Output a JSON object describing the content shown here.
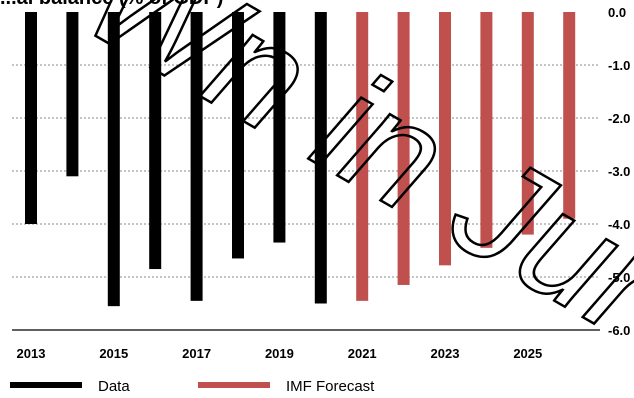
{
  "chart_data": {
    "type": "bar",
    "title": "...al balance (% of GDP)",
    "x": [
      2013,
      2014,
      2015,
      2016,
      2017,
      2018,
      2019,
      2020,
      2021,
      2022,
      2023,
      2024,
      2025,
      2026
    ],
    "x_tick_labels": [
      "2013",
      "2015",
      "2017",
      "2019",
      "2021",
      "2023",
      "2025"
    ],
    "y_tick_labels": [
      "0.0",
      "-1.0",
      "-2.0",
      "-3.0",
      "-4.0",
      "-5.0",
      "-6.0"
    ],
    "ylim": [
      -6,
      0
    ],
    "y_axis_side": "right",
    "grid": "horizontal dashed",
    "legend_position": "bottom-left",
    "series": [
      {
        "name": "Data",
        "color": "#000000",
        "x": [
          2013,
          2014,
          2015,
          2016,
          2017,
          2018,
          2019,
          2020
        ],
        "values": [
          -4.0,
          -3.1,
          -5.55,
          -4.85,
          -5.45,
          -4.65,
          -4.35,
          -5.5
        ]
      },
      {
        "name": "IMF Forecast",
        "color": "#c0504d",
        "x": [
          2021,
          2022,
          2023,
          2024,
          2025,
          2026
        ],
        "values": [
          -5.45,
          -5.15,
          -4.78,
          -4.45,
          -4.2,
          -3.9
        ]
      }
    ]
  },
  "watermark": {
    "text": "Wn in Jur"
  }
}
